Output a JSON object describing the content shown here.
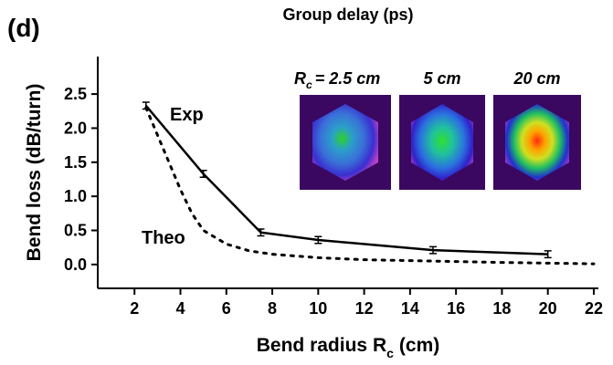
{
  "chart_data": {
    "type": "line",
    "panel_label": "(d)",
    "title": "Group delay (ps)",
    "xlabel": {
      "text": "Bend radius R",
      "subscript": "c",
      "suffix": "(cm)"
    },
    "ylabel": "Bend loss (dB/turn)",
    "xlim": [
      0.4,
      22.2
    ],
    "ylim": [
      -0.35,
      3.05
    ],
    "xticks": [
      2,
      4,
      6,
      8,
      10,
      12,
      14,
      16,
      18,
      20,
      22
    ],
    "yticks": [
      {
        "value": 0,
        "label": "0.0"
      },
      {
        "value": 0.5,
        "label": "0.5"
      },
      {
        "value": 1,
        "label": "1.0"
      },
      {
        "value": 1.5,
        "label": "1.5"
      },
      {
        "value": 2,
        "label": "2.0"
      },
      {
        "value": 2.5,
        "label": "2.5"
      }
    ],
    "series": [
      {
        "name": "Exp",
        "color": "#000000",
        "style": "solid",
        "x": [
          2.5,
          5,
          7.5,
          10,
          15,
          20
        ],
        "values": [
          2.33,
          1.33,
          0.47,
          0.36,
          0.21,
          0.15
        ],
        "errors": [
          0.05,
          0.05,
          0.05,
          0.05,
          0.05,
          0.05
        ]
      },
      {
        "name": "Theo",
        "color": "#000000",
        "style": "dotted",
        "x": [
          2.5,
          3,
          3.5,
          4,
          4.5,
          5,
          6,
          7,
          8,
          10,
          12,
          15,
          18,
          20,
          22
        ],
        "values": [
          2.3,
          1.9,
          1.5,
          1.1,
          0.75,
          0.5,
          0.3,
          0.2,
          0.15,
          0.1,
          0.07,
          0.05,
          0.03,
          0.02,
          0.01
        ]
      }
    ],
    "insets": [
      {
        "label_symbol": "R",
        "label_subscript": "c",
        "label": "= 2.5 cm"
      },
      {
        "label": "5 cm"
      },
      {
        "label": "20 cm"
      }
    ]
  }
}
